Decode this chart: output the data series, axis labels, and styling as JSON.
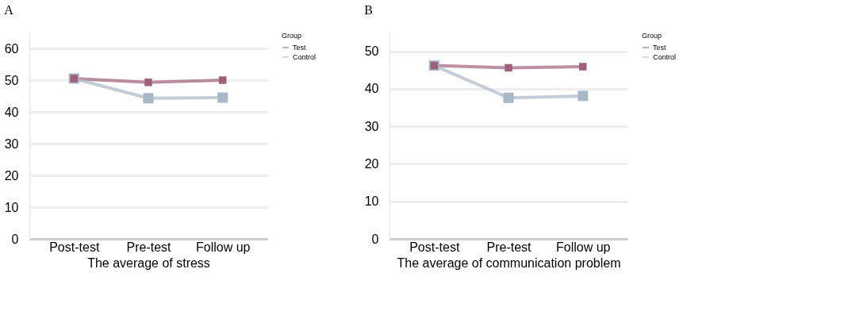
{
  "chart_data": [
    {
      "type": "line",
      "title": "A",
      "xlabel": "The average of stress",
      "categories": [
        "Post-test",
        "Pre-test",
        "Follow up"
      ],
      "legend_title": "Group",
      "legend": "top right",
      "grid": "y",
      "marker": "square",
      "line_style": "solid",
      "ylim": [
        0,
        65
      ],
      "yticks": [
        0,
        10,
        20,
        30,
        40,
        50,
        60
      ],
      "series": [
        {
          "name": "Test",
          "color": "#a0607a",
          "values": [
            50.5,
            49.3,
            50
          ]
        },
        {
          "name": "Control",
          "color": "#a9b8c8",
          "values": [
            50.5,
            44.3,
            44.5
          ]
        }
      ]
    },
    {
      "type": "line",
      "title": "B",
      "xlabel": "The average of communication problem",
      "categories": [
        "Post-test",
        "Pre-test",
        "Follow up"
      ],
      "legend_title": "Group",
      "legend": "top right",
      "grid": "y",
      "marker": "square",
      "line_style": "solid",
      "ylim": [
        0,
        55
      ],
      "yticks": [
        0,
        10,
        20,
        30,
        40,
        50
      ],
      "series": [
        {
          "name": "Test",
          "color": "#a0607a",
          "values": [
            46.2,
            45.6,
            45.9
          ]
        },
        {
          "name": "Control",
          "color": "#a9b8c8",
          "values": [
            46.2,
            37.6,
            38.1
          ]
        }
      ]
    }
  ]
}
